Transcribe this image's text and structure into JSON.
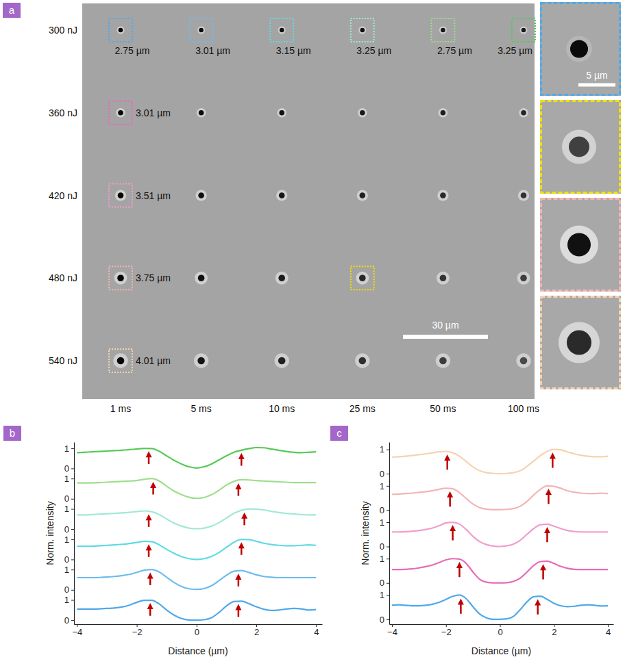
{
  "panel_a": {
    "panel": "a",
    "row_labels": [
      "300 nJ",
      "360 nJ",
      "420 nJ",
      "480 nJ",
      "540 nJ"
    ],
    "column_labels": [
      "1 ms",
      "5 ms",
      "10 ms",
      "25 ms",
      "50 ms",
      "100 ms"
    ],
    "boxes": [
      [
        {
          "label": "2.75 µm",
          "color": "#4fa9ea"
        },
        {
          "label": "3.01 µm",
          "color": "#6cbcef"
        },
        {
          "label": "3.15 µm",
          "color": "#5edbe6"
        },
        {
          "label": "3.25 µm",
          "color": "#a3e8d8"
        },
        {
          "label": "2.75 µm",
          "color": "#9ddf8c"
        },
        {
          "label": "3.25 µm",
          "color": "#55c957"
        }
      ],
      [
        {
          "label": "3.01 µm",
          "color": "#e86ab6"
        },
        null,
        null,
        null,
        null,
        null
      ],
      [
        {
          "label": "3.51 µm",
          "color": "#f29ccc"
        },
        null,
        null,
        null,
        null,
        null
      ],
      [
        {
          "label": "3.75 µm",
          "color": "#f4b4b4"
        },
        null,
        null,
        {
          "color": "#f2e200"
        },
        null,
        null
      ],
      [
        {
          "label": "4.01 µm",
          "color": "#f7d3b0"
        },
        null,
        null,
        null,
        null,
        null
      ]
    ],
    "scale_bar": "30 µm",
    "insets": {
      "scale_bar": "5 µm",
      "colors": [
        "#4fa9ea",
        "#f2e200",
        "#f4b4b4",
        "#f7d3b0"
      ]
    }
  },
  "chart_data": [
    {
      "type": "line",
      "panel": "b",
      "xlabel": "Distance (µm)",
      "ylabel": "Norm. intensity",
      "x": [
        -4,
        -3.75,
        -3.5,
        -3.25,
        -3,
        -2.75,
        -2.5,
        -2.25,
        -2,
        -1.75,
        -1.5,
        -1.25,
        -1,
        -0.75,
        -0.5,
        -0.25,
        0,
        0.25,
        0.5,
        0.75,
        1,
        1.25,
        1.5,
        1.75,
        2,
        2.25,
        2.5,
        2.75,
        3,
        3.25,
        3.5,
        3.75,
        4
      ],
      "xlim": [
        -4.1,
        4.2
      ],
      "xticks": [
        -4,
        -2,
        0,
        2,
        4
      ],
      "ylim": [
        -0.2,
        1.3
      ],
      "yticks": [
        0,
        1
      ],
      "series": [
        {
          "color": "#55c957",
          "arrows": [
            -1.6,
            1.5
          ],
          "values": [
            0.78,
            0.8,
            0.82,
            0.84,
            0.86,
            0.88,
            0.9,
            0.93,
            0.96,
            0.99,
            0.98,
            0.85,
            0.62,
            0.4,
            0.22,
            0.08,
            0.02,
            0.08,
            0.22,
            0.42,
            0.62,
            0.8,
            0.9,
            0.98,
            1.03,
            1.02,
            0.96,
            0.9,
            0.84,
            0.8,
            0.78,
            0.8,
            0.82
          ]
        },
        {
          "color": "#9ddf8c",
          "arrows": [
            -1.45,
            1.4
          ],
          "values": [
            0.78,
            0.78,
            0.79,
            0.8,
            0.82,
            0.84,
            0.86,
            0.88,
            0.9,
            0.96,
            1.0,
            0.88,
            0.62,
            0.38,
            0.2,
            0.07,
            0.02,
            0.06,
            0.2,
            0.42,
            0.68,
            0.86,
            0.94,
            0.93,
            0.9,
            0.88,
            0.86,
            0.84,
            0.82,
            0.8,
            0.8,
            0.8,
            0.8
          ]
        },
        {
          "color": "#a3e8d8",
          "arrows": [
            -1.6,
            1.6
          ],
          "values": [
            0.7,
            0.7,
            0.72,
            0.74,
            0.76,
            0.78,
            0.8,
            0.83,
            0.87,
            0.9,
            0.86,
            0.72,
            0.5,
            0.3,
            0.15,
            0.05,
            0.02,
            0.05,
            0.15,
            0.32,
            0.55,
            0.78,
            0.93,
            1.0,
            0.99,
            0.95,
            0.88,
            0.82,
            0.78,
            0.75,
            0.72,
            0.7,
            0.7
          ]
        },
        {
          "color": "#5edbe6",
          "arrows": [
            -1.6,
            1.5
          ],
          "values": [
            0.65,
            0.65,
            0.66,
            0.68,
            0.7,
            0.72,
            0.75,
            0.79,
            0.84,
            0.9,
            0.88,
            0.72,
            0.5,
            0.3,
            0.14,
            0.04,
            0.0,
            0.04,
            0.15,
            0.34,
            0.6,
            0.85,
            0.99,
            0.98,
            0.9,
            0.8,
            0.74,
            0.7,
            0.68,
            0.68,
            0.7,
            0.72,
            0.7
          ]
        },
        {
          "color": "#6cbcef",
          "arrows": [
            -1.55,
            1.4
          ],
          "values": [
            0.6,
            0.6,
            0.6,
            0.61,
            0.63,
            0.66,
            0.7,
            0.76,
            0.86,
            0.97,
            1.0,
            0.88,
            0.62,
            0.36,
            0.16,
            0.05,
            0.02,
            0.06,
            0.2,
            0.45,
            0.72,
            0.92,
            0.95,
            0.86,
            0.74,
            0.66,
            0.62,
            0.6,
            0.6,
            0.6,
            0.6,
            0.6,
            0.6
          ]
        },
        {
          "color": "#4fa9ea",
          "arrows": [
            -1.55,
            1.4
          ],
          "values": [
            0.55,
            0.55,
            0.55,
            0.56,
            0.58,
            0.6,
            0.65,
            0.74,
            0.88,
            0.98,
            0.98,
            0.8,
            0.5,
            0.25,
            0.08,
            0.01,
            0.0,
            0.02,
            0.12,
            0.38,
            0.7,
            0.92,
            0.94,
            0.82,
            0.66,
            0.54,
            0.48,
            0.5,
            0.55,
            0.58,
            0.56,
            0.5,
            0.52
          ]
        }
      ]
    },
    {
      "type": "line",
      "panel": "c",
      "xlabel": "Distance (µm)",
      "ylabel": "Norm. intensity",
      "x": [
        -4,
        -3.75,
        -3.5,
        -3.25,
        -3,
        -2.75,
        -2.5,
        -2.25,
        -2,
        -1.75,
        -1.5,
        -1.25,
        -1,
        -0.75,
        -0.5,
        -0.25,
        0,
        0.25,
        0.5,
        0.75,
        1,
        1.25,
        1.5,
        1.75,
        2,
        2.25,
        2.5,
        2.75,
        3,
        3.25,
        3.5,
        3.75,
        4
      ],
      "xlim": [
        -4.1,
        4.2
      ],
      "xticks": [
        -4,
        -2,
        0,
        2,
        4
      ],
      "ylim": [
        -0.2,
        1.3
      ],
      "yticks": [
        0,
        1
      ],
      "series": [
        {
          "color": "#f7d3b0",
          "arrows": [
            -1.95,
            1.95
          ],
          "values": [
            0.68,
            0.7,
            0.72,
            0.75,
            0.78,
            0.82,
            0.86,
            0.9,
            0.92,
            0.86,
            0.72,
            0.5,
            0.28,
            0.12,
            0.04,
            0.01,
            0.0,
            0.01,
            0.04,
            0.12,
            0.3,
            0.52,
            0.75,
            0.92,
            1.0,
            0.98,
            0.9,
            0.82,
            0.76,
            0.72,
            0.7,
            0.7,
            0.72
          ]
        },
        {
          "color": "#f4b4b4",
          "arrows": [
            -1.85,
            1.8
          ],
          "values": [
            0.65,
            0.66,
            0.68,
            0.7,
            0.73,
            0.76,
            0.8,
            0.86,
            0.9,
            0.88,
            0.72,
            0.48,
            0.25,
            0.1,
            0.04,
            0.02,
            0.02,
            0.03,
            0.06,
            0.16,
            0.36,
            0.62,
            0.86,
            1.0,
            0.98,
            0.9,
            0.8,
            0.74,
            0.7,
            0.68,
            0.68,
            0.7,
            0.68
          ]
        },
        {
          "color": "#f29ccc",
          "arrows": [
            -1.75,
            1.75
          ],
          "values": [
            0.6,
            0.6,
            0.61,
            0.63,
            0.66,
            0.7,
            0.76,
            0.86,
            0.97,
            1.0,
            0.92,
            0.7,
            0.42,
            0.2,
            0.08,
            0.02,
            0.0,
            0.03,
            0.1,
            0.26,
            0.5,
            0.74,
            0.9,
            0.92,
            0.84,
            0.74,
            0.66,
            0.62,
            0.6,
            0.6,
            0.6,
            0.6,
            0.6
          ]
        },
        {
          "color": "#e86ab6",
          "arrows": [
            -1.5,
            1.6
          ],
          "values": [
            0.55,
            0.55,
            0.56,
            0.58,
            0.62,
            0.67,
            0.74,
            0.84,
            0.95,
            1.0,
            0.98,
            0.8,
            0.45,
            0.15,
            0.03,
            0.0,
            0.0,
            0.01,
            0.06,
            0.2,
            0.45,
            0.72,
            0.88,
            0.9,
            0.8,
            0.68,
            0.6,
            0.56,
            0.55,
            0.55,
            0.55,
            0.55,
            0.55
          ]
        },
        {
          "color": "#4fa9ea",
          "arrows": [
            -1.45,
            1.4
          ],
          "values": [
            0.58,
            0.6,
            0.58,
            0.56,
            0.56,
            0.58,
            0.62,
            0.7,
            0.82,
            0.95,
            1.0,
            0.85,
            0.52,
            0.22,
            0.06,
            0.0,
            0.0,
            0.02,
            0.12,
            0.4,
            0.72,
            0.93,
            0.95,
            0.82,
            0.66,
            0.56,
            0.52,
            0.54,
            0.58,
            0.6,
            0.58,
            0.55,
            0.56
          ]
        }
      ]
    }
  ]
}
